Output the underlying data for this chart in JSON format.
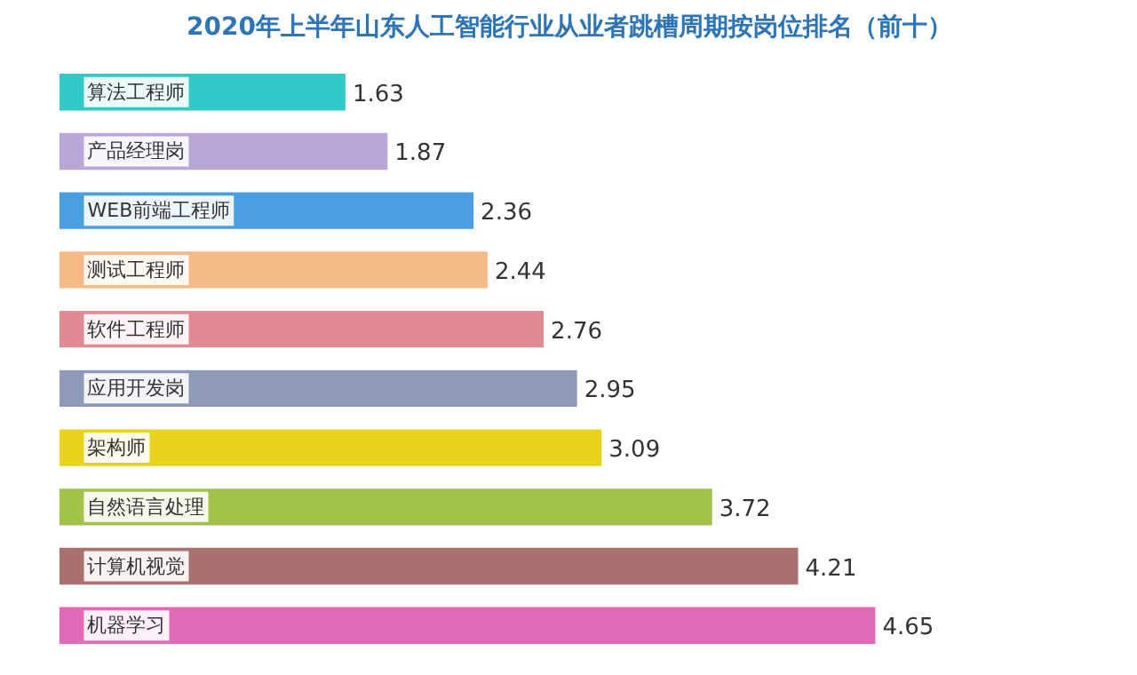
{
  "chart_data": {
    "type": "bar",
    "orientation": "horizontal",
    "title": "2020年上半年山东人工智能行业从业者跳槽周期按岗位排名（前十）",
    "categories": [
      "算法工程师",
      "产品经理岗",
      "WEB前端工程师",
      "测试工程师",
      "软件工程师",
      "应用开发岗",
      "架构师",
      "自然语言处理",
      "计算机视觉",
      "机器学习"
    ],
    "values": [
      1.63,
      1.87,
      2.36,
      2.44,
      2.76,
      2.95,
      3.09,
      3.72,
      4.21,
      4.65
    ],
    "colors": [
      "#33c9c9",
      "#b9a6d9",
      "#4a9fe0",
      "#f5b987",
      "#e08a94",
      "#8f9ab8",
      "#e8d21e",
      "#a3c24a",
      "#a8706e",
      "#e06ab5"
    ],
    "data_labels": true,
    "grid": false
  }
}
